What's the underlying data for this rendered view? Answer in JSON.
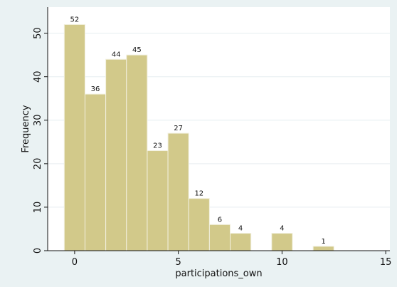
{
  "chart_data": {
    "type": "bar",
    "title": "",
    "xlabel": "participations_own",
    "ylabel": "Frequency",
    "bin_width": 1,
    "bins": [
      {
        "x": 0,
        "value": 52
      },
      {
        "x": 1,
        "value": 36
      },
      {
        "x": 2,
        "value": 44
      },
      {
        "x": 3,
        "value": 45
      },
      {
        "x": 4,
        "value": 23
      },
      {
        "x": 5,
        "value": 27
      },
      {
        "x": 6,
        "value": 12
      },
      {
        "x": 7,
        "value": 6
      },
      {
        "x": 8,
        "value": 4
      },
      {
        "x": 10,
        "value": 4
      },
      {
        "x": 12,
        "value": 1
      }
    ],
    "xlim": [
      -1.3,
      15.2
    ],
    "ylim": [
      0,
      56
    ],
    "xticks": [
      0,
      5,
      10,
      15
    ],
    "yticks": [
      0,
      10,
      20,
      30,
      40,
      50
    ],
    "grid": true,
    "bar_color": "#d2c98a",
    "bar_edge_color": "#f2f0df",
    "background_color": "#eaf2f3",
    "plot_background_color": "#ffffff",
    "grid_color": "#e6eef0"
  }
}
